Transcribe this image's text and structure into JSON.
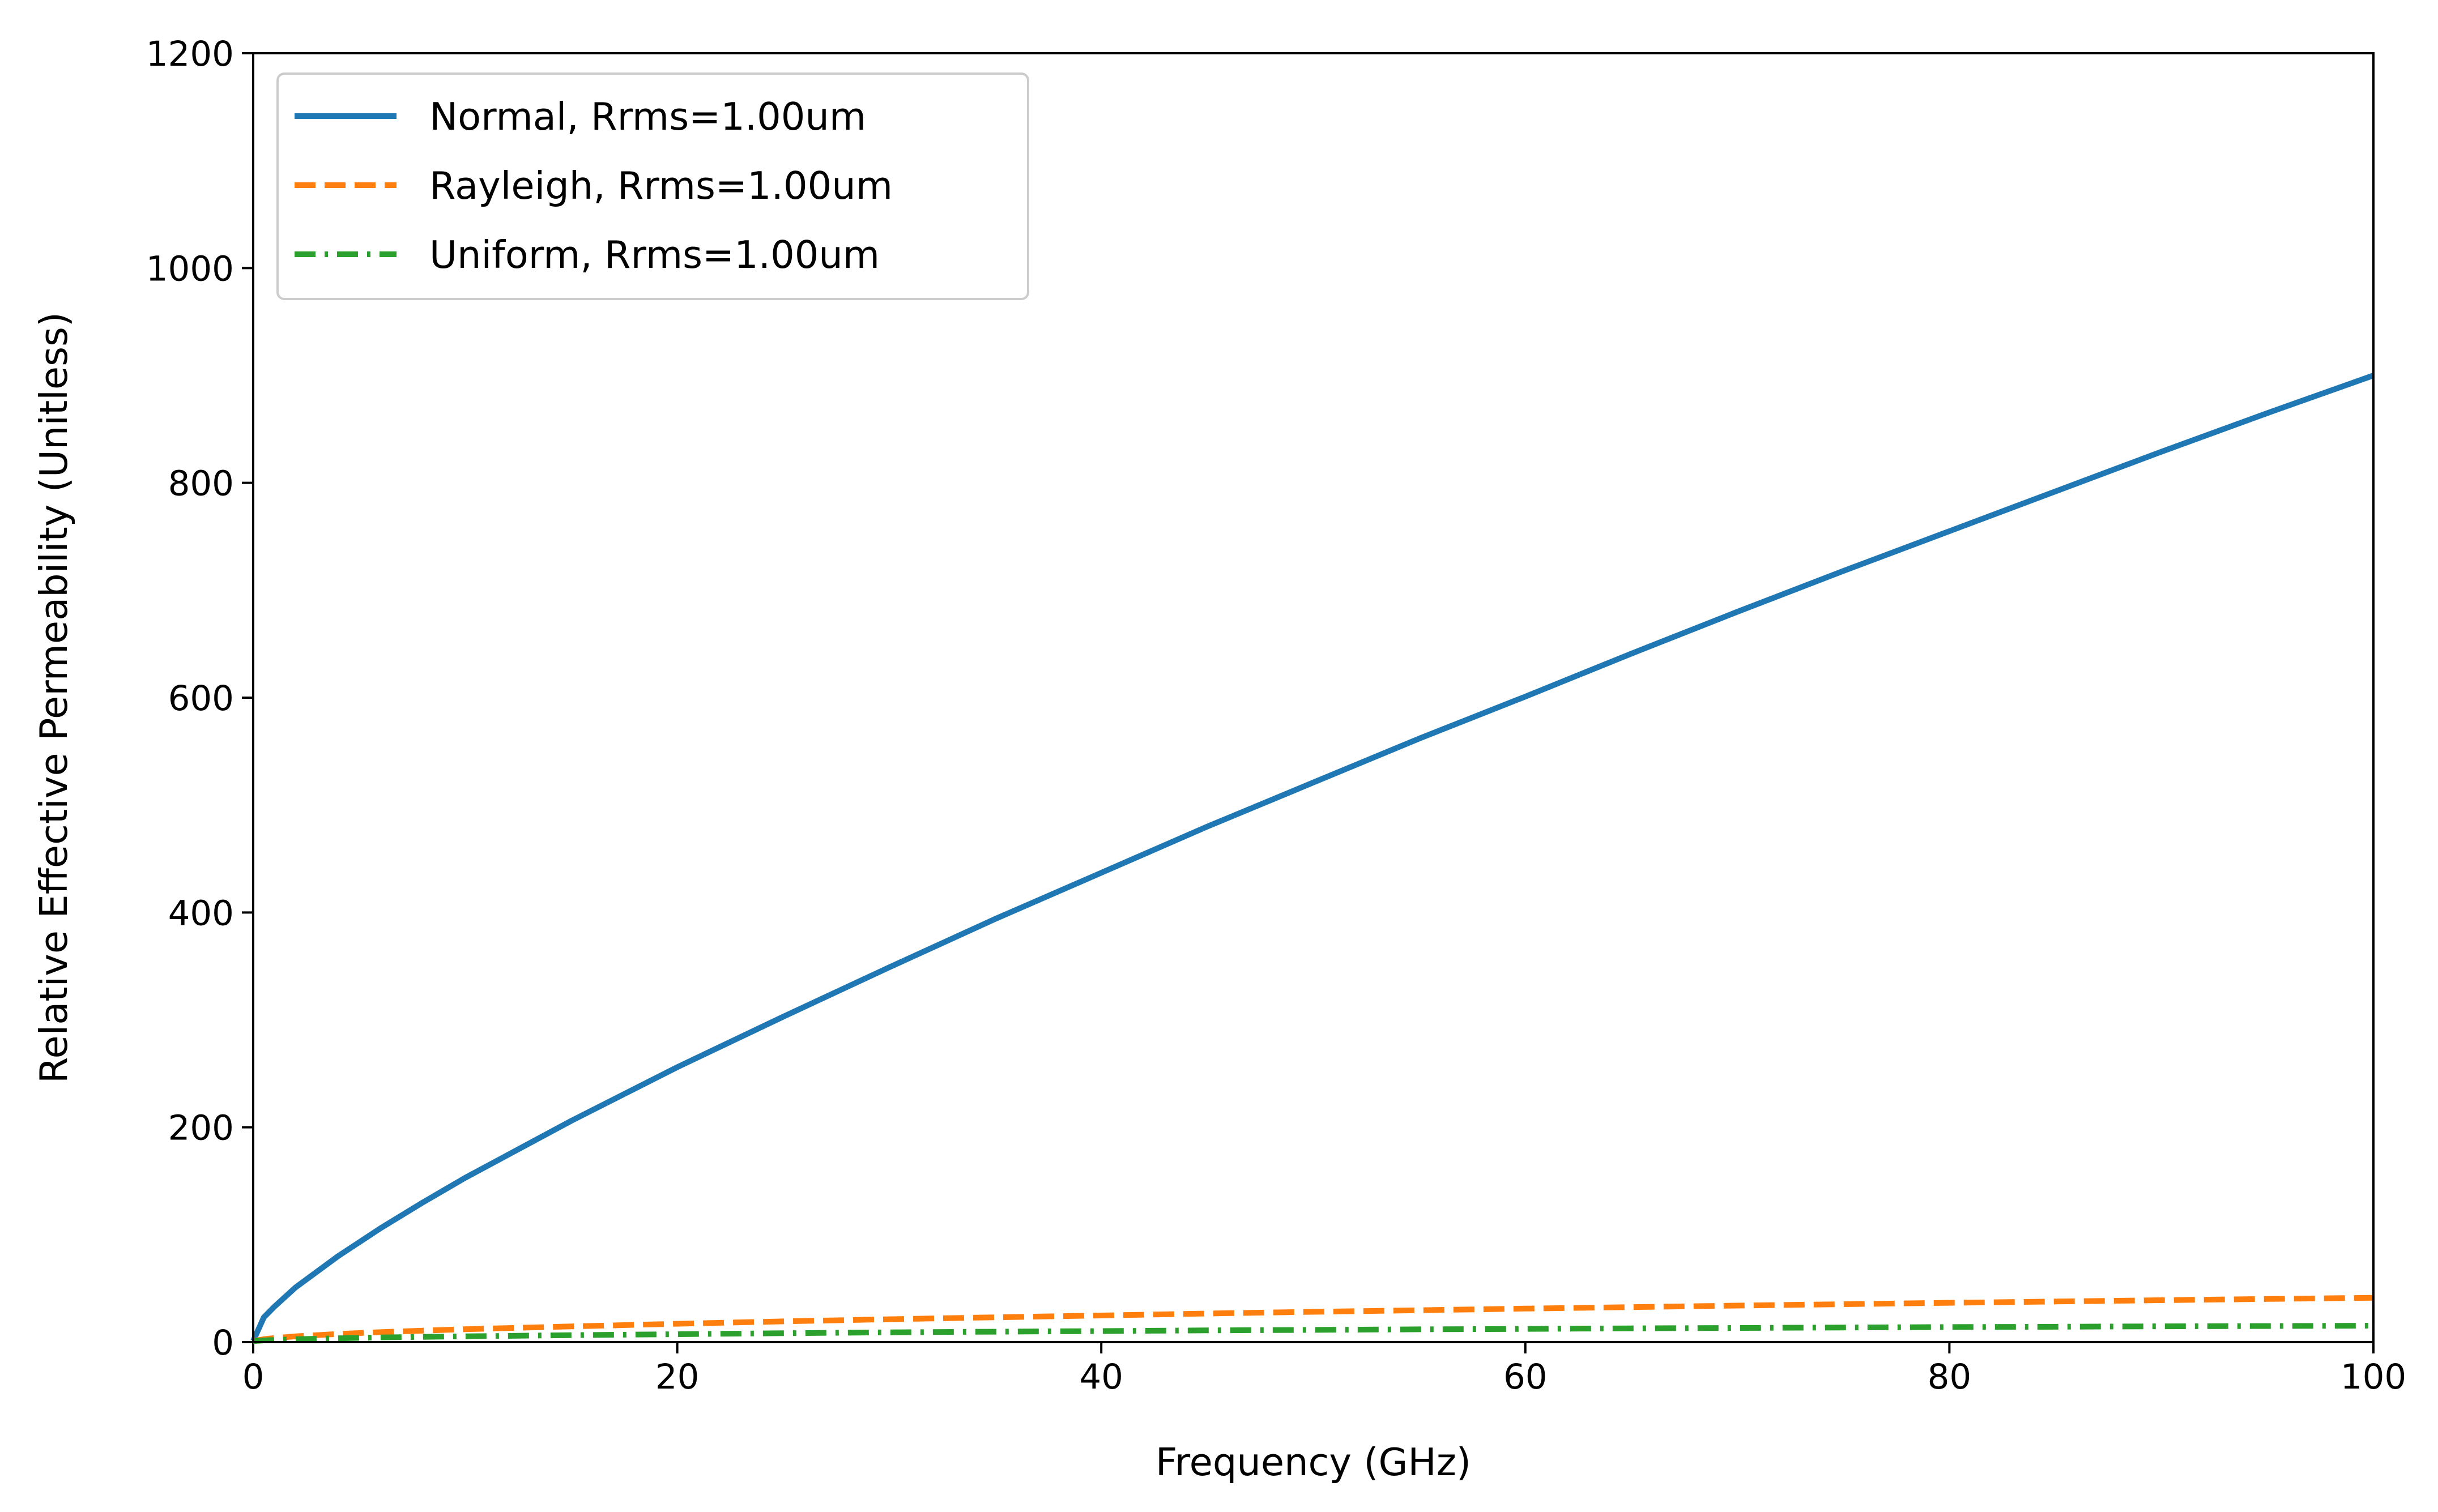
{
  "chart_data": {
    "type": "line",
    "title": "",
    "xlabel": "Frequency (GHz)",
    "ylabel": "Relative Effective Permeability (Unitless)",
    "xlim": [
      0,
      100
    ],
    "ylim": [
      0,
      1200
    ],
    "xticks": [
      0,
      20,
      40,
      60,
      80,
      100
    ],
    "yticks": [
      0,
      200,
      400,
      600,
      800,
      1000,
      1200
    ],
    "grid": false,
    "legend_position": "top-left",
    "x": [
      0,
      0.5,
      1,
      2,
      4,
      6,
      8,
      10,
      15,
      20,
      25,
      30,
      35,
      40,
      45,
      50,
      55,
      60,
      65,
      70,
      75,
      80,
      85,
      90,
      95,
      100
    ],
    "series": [
      {
        "name": "Normal, Rrms=1.00um",
        "color": "#1f77b4",
        "style": "solid",
        "values": [
          1,
          23,
          33,
          51,
          80,
          106,
          130,
          153,
          206,
          256,
          303,
          349,
          394,
          437,
          480,
          521,
          562,
          601,
          641,
          680,
          718,
          755,
          792,
          829,
          865,
          900
        ]
      },
      {
        "name": "Rayleigh, Rrms=1.00um",
        "color": "#ff7f0e",
        "style": "dashed",
        "values": [
          1,
          2.7,
          3.8,
          5.4,
          7.6,
          9.3,
          10.7,
          12,
          14.6,
          17.1,
          19.3,
          21.3,
          23.1,
          24.8,
          26.6,
          28.2,
          29.7,
          31.2,
          32.6,
          34,
          35.3,
          36.6,
          37.8,
          39,
          40.2,
          41.3
        ]
      },
      {
        "name": "Uniform, Rrms=1.00um",
        "color": "#2ca02c",
        "style": "dashdot",
        "values": [
          1,
          1.6,
          2,
          2.7,
          3.6,
          4.3,
          4.9,
          5.4,
          6.5,
          7.4,
          8.3,
          9.1,
          9.7,
          10.3,
          10.9,
          11.4,
          11.9,
          12.3,
          12.8,
          13.2,
          13.6,
          14,
          14.3,
          14.7,
          15,
          15.3
        ]
      }
    ]
  }
}
